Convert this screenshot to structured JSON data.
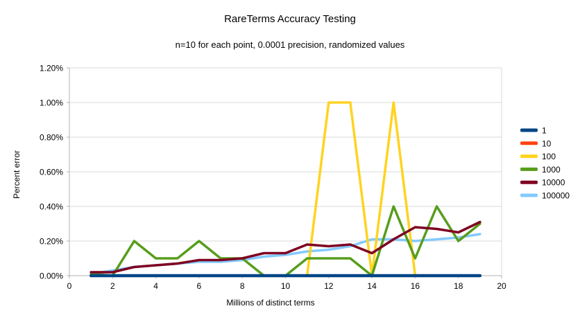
{
  "chart_data": {
    "type": "line",
    "title": "RareTerms Accuracy Testing",
    "subtitle": "n=10 for each point, 0.0001 precision, randomized values",
    "xlabel": "Millions of distinct terms",
    "ylabel": "Percent error",
    "x": [
      1,
      2,
      3,
      4,
      5,
      6,
      7,
      8,
      9,
      10,
      11,
      12,
      13,
      14,
      15,
      16,
      17,
      18,
      19
    ],
    "xlim": [
      0,
      20
    ],
    "ylim_percent": [
      0,
      1.2
    ],
    "x_tick_values": [
      0,
      2,
      4,
      6,
      8,
      10,
      12,
      14,
      16,
      18,
      20
    ],
    "y_tick_values": [
      0,
      0.2,
      0.4,
      0.6,
      0.8,
      1.0,
      1.2
    ],
    "y_tick_labels": [
      "0.00%",
      "0.20%",
      "0.40%",
      "0.60%",
      "0.80%",
      "1.00%",
      "1.20%"
    ],
    "grid": "horizontal",
    "legend_position": "right",
    "units": "percent error, 0.2 = 0.20%",
    "series": [
      {
        "name": "1",
        "color": "#004586",
        "values": [
          0,
          0,
          0,
          0,
          0,
          0,
          0,
          0,
          0,
          0,
          0,
          0,
          0,
          0,
          0,
          0,
          0,
          0,
          0
        ]
      },
      {
        "name": "10",
        "color": "#FF420E",
        "values": [
          0,
          0,
          0,
          0,
          0,
          0,
          0,
          0,
          0,
          0,
          0,
          0,
          0,
          0,
          0,
          0,
          0,
          0,
          0
        ]
      },
      {
        "name": "100",
        "color": "#FFD320",
        "values": [
          0,
          0,
          0,
          0,
          0,
          0,
          0,
          0,
          0,
          0,
          0,
          1.0,
          1.0,
          0,
          1.0,
          0,
          0,
          0,
          0
        ]
      },
      {
        "name": "1000",
        "color": "#579D1C",
        "values": [
          0.01,
          0,
          0.2,
          0.1,
          0.1,
          0.2,
          0.1,
          0.1,
          0,
          0,
          0.1,
          0.1,
          0.1,
          0,
          0.4,
          0.1,
          0.4,
          0.2,
          0.3
        ]
      },
      {
        "name": "10000",
        "color": "#7E0021",
        "values": [
          0.02,
          0.02,
          0.05,
          0.06,
          0.07,
          0.09,
          0.09,
          0.1,
          0.13,
          0.13,
          0.18,
          0.17,
          0.18,
          0.13,
          0.21,
          0.28,
          0.27,
          0.25,
          0.31
        ]
      },
      {
        "name": "100000",
        "color": "#83CAFF",
        "values": [
          0.01,
          0.03,
          0.05,
          0.06,
          0.07,
          0.08,
          0.08,
          0.09,
          0.11,
          0.12,
          0.14,
          0.15,
          0.17,
          0.21,
          0.21,
          0.2,
          0.21,
          0.22,
          0.24
        ]
      }
    ],
    "draw_order": [
      "10",
      "100000",
      "100",
      "1000",
      "10000",
      "1"
    ],
    "style": {
      "gridline_color": "#d9d9d9",
      "axis_color": "#b3b3b3",
      "plot_border_color": "#d9d9d9",
      "background": "#ffffff"
    }
  }
}
